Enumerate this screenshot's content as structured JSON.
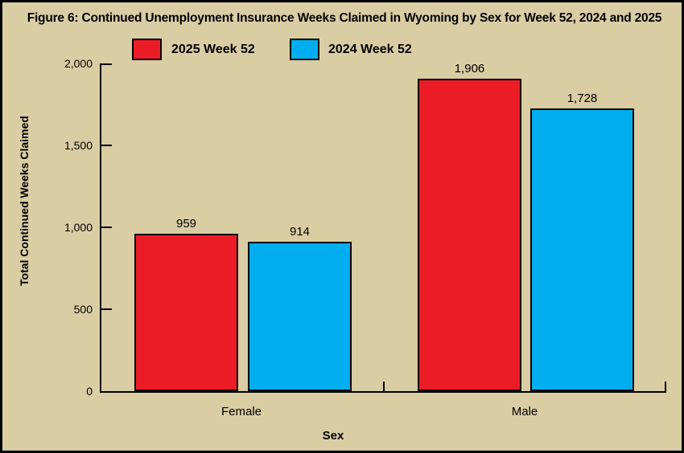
{
  "figure": {
    "title": "Figure 6: Continued Unemployment Insurance Weeks Claimed in Wyoming by Sex for Week 52, 2024 and 2025"
  },
  "chart_data": {
    "type": "bar",
    "title": "Figure 6: Continued Unemployment Insurance Weeks Claimed in Wyoming by Sex for Week 52, 2024 and 2025",
    "categories": [
      "Female",
      "Male"
    ],
    "series": [
      {
        "name": "2025 Week 52",
        "color": "#ec1c27",
        "values": [
          959,
          1906
        ],
        "labels": [
          "959",
          "1,906"
        ]
      },
      {
        "name": "2024 Week 52",
        "color": "#00aeef",
        "values": [
          914,
          1728
        ],
        "labels": [
          "914",
          "1,728"
        ]
      }
    ],
    "xlabel": "Sex",
    "ylabel": "Total Continued Weeks Claimed",
    "ylim": [
      0,
      2000
    ],
    "yticks": [
      {
        "value": 0,
        "label": "0"
      },
      {
        "value": 500,
        "label": "500"
      },
      {
        "value": 1000,
        "label": "1,000"
      },
      {
        "value": 1500,
        "label": "1,500"
      },
      {
        "value": 2000,
        "label": "2,000"
      }
    ],
    "legend_position": "top-left",
    "grid": false,
    "colors": {
      "background": "#dacda4",
      "axis": "#000000",
      "text": "#000000"
    }
  }
}
